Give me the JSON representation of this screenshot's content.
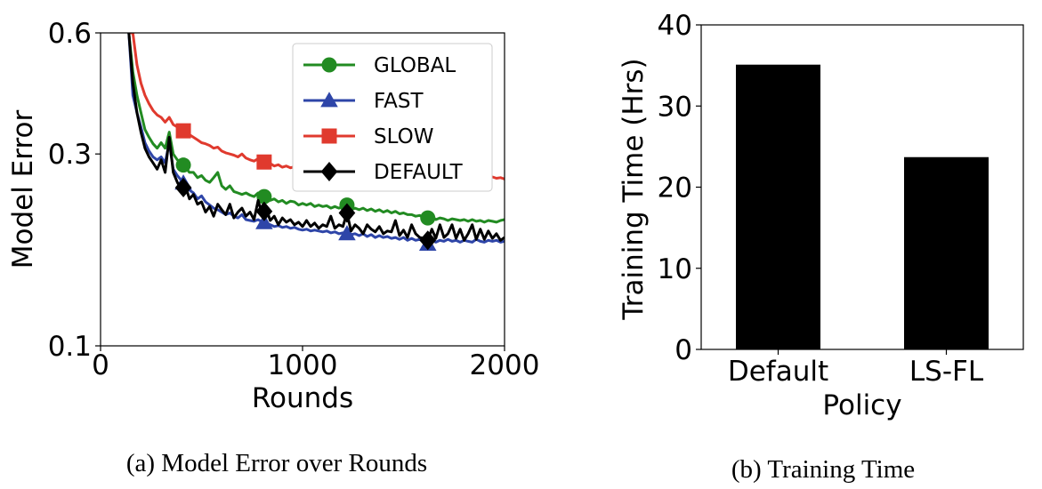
{
  "chart_data": [
    {
      "type": "line",
      "caption": "(a) Model Error over Rounds",
      "title": "",
      "xlabel": "Rounds",
      "ylabel": "Model Error",
      "xlim": [
        0,
        2000
      ],
      "ylim": [
        0.1,
        0.6
      ],
      "yscale": "log",
      "xticks": [
        0,
        1000,
        2000
      ],
      "yticks": [
        0.1,
        0.3,
        0.6
      ],
      "xtick_labels": [
        "0",
        "1000",
        "2000"
      ],
      "ytick_labels": [
        "0.1",
        "0.3",
        "0.6"
      ],
      "grid": false,
      "legend": "top-right",
      "x": [
        140,
        160,
        180,
        200,
        220,
        240,
        260,
        280,
        300,
        320,
        340,
        360,
        380,
        400,
        420,
        440,
        460,
        480,
        500,
        520,
        540,
        560,
        580,
        600,
        620,
        640,
        660,
        680,
        700,
        720,
        740,
        760,
        780,
        800,
        820,
        840,
        860,
        880,
        900,
        920,
        940,
        960,
        980,
        1000,
        1020,
        1040,
        1060,
        1080,
        1100,
        1120,
        1140,
        1160,
        1180,
        1200,
        1220,
        1240,
        1260,
        1280,
        1300,
        1320,
        1340,
        1360,
        1380,
        1400,
        1420,
        1440,
        1460,
        1480,
        1500,
        1520,
        1540,
        1560,
        1580,
        1600,
        1620,
        1640,
        1660,
        1680,
        1700,
        1720,
        1740,
        1760,
        1780,
        1800,
        1820,
        1840,
        1860,
        1880,
        1900,
        1920,
        1940,
        1960,
        1980,
        2000
      ],
      "series": [
        {
          "name": "GLOBAL",
          "color": "#228b22",
          "marker": "circle",
          "marker_x": [
            410,
            810,
            1220,
            1620
          ],
          "values": [
            0.6,
            0.48,
            0.42,
            0.38,
            0.345,
            0.33,
            0.318,
            0.31,
            0.32,
            0.31,
            0.34,
            0.3,
            0.29,
            0.285,
            0.278,
            0.27,
            0.27,
            0.262,
            0.265,
            0.258,
            0.255,
            0.262,
            0.27,
            0.25,
            0.245,
            0.25,
            0.242,
            0.24,
            0.238,
            0.24,
            0.237,
            0.235,
            0.24,
            0.236,
            0.234,
            0.23,
            0.232,
            0.228,
            0.23,
            0.226,
            0.229,
            0.228,
            0.224,
            0.226,
            0.224,
            0.226,
            0.222,
            0.224,
            0.222,
            0.223,
            0.22,
            0.222,
            0.22,
            0.222,
            0.224,
            0.218,
            0.22,
            0.218,
            0.22,
            0.217,
            0.219,
            0.216,
            0.218,
            0.215,
            0.217,
            0.214,
            0.216,
            0.213,
            0.214,
            0.212,
            0.212,
            0.21,
            0.211,
            0.208,
            0.208,
            0.21,
            0.206,
            0.208,
            0.207,
            0.205,
            0.207,
            0.206,
            0.205,
            0.206,
            0.204,
            0.206,
            0.204,
            0.205,
            0.203,
            0.205,
            0.204,
            0.203,
            0.205,
            0.206
          ]
        },
        {
          "name": "FAST",
          "color": "#2e45a8",
          "marker": "triangle",
          "marker_x": [
            410,
            810,
            1220,
            1620
          ],
          "values": [
            0.6,
            0.42,
            0.38,
            0.35,
            0.32,
            0.305,
            0.295,
            0.29,
            0.295,
            0.285,
            0.32,
            0.275,
            0.265,
            0.258,
            0.25,
            0.244,
            0.24,
            0.232,
            0.236,
            0.228,
            0.224,
            0.22,
            0.218,
            0.215,
            0.212,
            0.214,
            0.21,
            0.208,
            0.212,
            0.206,
            0.205,
            0.204,
            0.206,
            0.203,
            0.202,
            0.2,
            0.198,
            0.199,
            0.197,
            0.198,
            0.196,
            0.197,
            0.195,
            0.194,
            0.195,
            0.193,
            0.194,
            0.193,
            0.192,
            0.193,
            0.191,
            0.192,
            0.19,
            0.191,
            0.19,
            0.189,
            0.19,
            0.188,
            0.19,
            0.187,
            0.189,
            0.186,
            0.188,
            0.186,
            0.187,
            0.185,
            0.186,
            0.184,
            0.186,
            0.183,
            0.185,
            0.183,
            0.184,
            0.181,
            0.179,
            0.183,
            0.181,
            0.183,
            0.182,
            0.184,
            0.182,
            0.183,
            0.181,
            0.183,
            0.182,
            0.181,
            0.184,
            0.182,
            0.181,
            0.183,
            0.182,
            0.183,
            0.181,
            0.182
          ]
        },
        {
          "name": "SLOW",
          "color": "#e03a2e",
          "marker": "square",
          "marker_x": [
            410,
            810,
            1220,
            1620
          ],
          "values": [
            0.6,
            0.6,
            0.5,
            0.45,
            0.42,
            0.4,
            0.385,
            0.375,
            0.37,
            0.36,
            0.37,
            0.355,
            0.35,
            0.345,
            0.34,
            0.335,
            0.33,
            0.325,
            0.32,
            0.318,
            0.315,
            0.31,
            0.312,
            0.305,
            0.302,
            0.3,
            0.298,
            0.295,
            0.3,
            0.293,
            0.29,
            0.288,
            0.292,
            0.288,
            0.285,
            0.284,
            0.28,
            0.282,
            0.278,
            0.28,
            0.277,
            0.279,
            0.276,
            0.278,
            0.274,
            0.276,
            0.273,
            0.275,
            0.272,
            0.274,
            0.271,
            0.276,
            0.27,
            0.272,
            0.268,
            0.274,
            0.268,
            0.27,
            0.267,
            0.272,
            0.266,
            0.27,
            0.266,
            0.268,
            0.265,
            0.27,
            0.264,
            0.268,
            0.264,
            0.266,
            0.263,
            0.268,
            0.262,
            0.266,
            0.263,
            0.265,
            0.26,
            0.266,
            0.261,
            0.264,
            0.26,
            0.266,
            0.258,
            0.263,
            0.262,
            0.258,
            0.264,
            0.259,
            0.262,
            0.26,
            0.263,
            0.261,
            0.262,
            0.26
          ]
        },
        {
          "name": "DEFAULT",
          "color": "#000000",
          "marker": "diamond",
          "marker_x": [
            410,
            810,
            1220,
            1620
          ],
          "values": [
            0.6,
            0.45,
            0.38,
            0.34,
            0.31,
            0.295,
            0.285,
            0.275,
            0.29,
            0.27,
            0.33,
            0.27,
            0.255,
            0.245,
            0.25,
            0.232,
            0.238,
            0.225,
            0.228,
            0.215,
            0.222,
            0.21,
            0.225,
            0.218,
            0.212,
            0.225,
            0.208,
            0.215,
            0.22,
            0.21,
            0.215,
            0.206,
            0.23,
            0.212,
            0.22,
            0.205,
            0.21,
            0.2,
            0.208,
            0.203,
            0.206,
            0.2,
            0.203,
            0.198,
            0.205,
            0.198,
            0.202,
            0.196,
            0.2,
            0.198,
            0.21,
            0.196,
            0.2,
            0.198,
            0.214,
            0.193,
            0.2,
            0.196,
            0.19,
            0.2,
            0.195,
            0.192,
            0.198,
            0.19,
            0.193,
            0.192,
            0.205,
            0.188,
            0.194,
            0.186,
            0.2,
            0.19,
            0.186,
            0.185,
            0.183,
            0.195,
            0.185,
            0.2,
            0.186,
            0.19,
            0.2,
            0.185,
            0.195,
            0.183,
            0.19,
            0.2,
            0.184,
            0.195,
            0.184,
            0.193,
            0.185,
            0.19,
            0.183,
            0.186
          ]
        }
      ]
    },
    {
      "type": "bar",
      "caption": "(b) Training Time",
      "title": "",
      "xlabel": "Policy",
      "ylabel": "Training Time (Hrs)",
      "categories": [
        "Default",
        "LS-FL"
      ],
      "values": [
        35.1,
        23.7
      ],
      "ylim": [
        0,
        40
      ],
      "yticks": [
        0,
        10,
        20,
        30,
        40
      ],
      "ytick_labels": [
        "0",
        "10",
        "20",
        "30",
        "40"
      ],
      "bar_color": "#000000",
      "grid": false
    }
  ]
}
